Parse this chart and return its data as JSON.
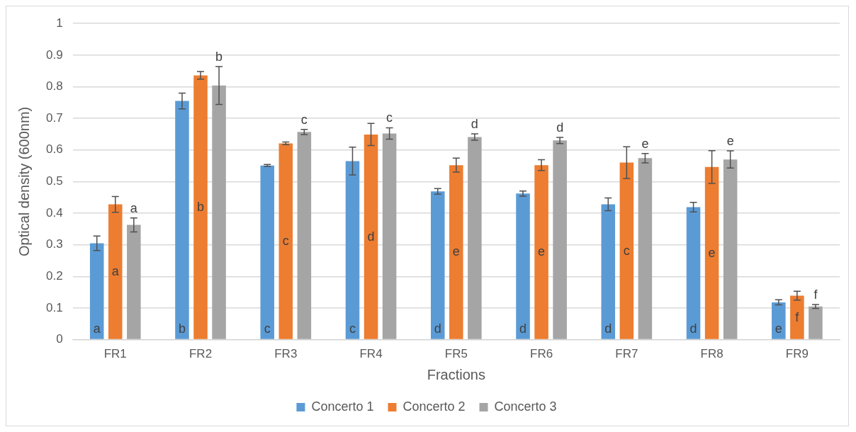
{
  "chart_data": {
    "type": "bar",
    "xlabel": "Fractions",
    "ylabel": "Optical density (600nm)",
    "categories": [
      "FR1",
      "FR2",
      "FR3",
      "FR4",
      "FR5",
      "FR6",
      "FR7",
      "FR8",
      "FR9"
    ],
    "series": [
      {
        "name": "Concerto 1",
        "color": "#5b9bd5",
        "values": [
          0.305,
          0.755,
          0.551,
          0.565,
          0.469,
          0.462,
          0.428,
          0.419,
          0.118
        ],
        "errors": [
          0.023,
          0.025,
          0.003,
          0.044,
          0.009,
          0.008,
          0.02,
          0.015,
          0.008
        ],
        "value_labels": [
          "a",
          "b",
          "c",
          "c",
          "d",
          "d",
          "d",
          "d",
          "e"
        ]
      },
      {
        "name": "Concerto 2",
        "color": "#ed7d31",
        "values": [
          0.428,
          0.836,
          0.621,
          0.649,
          0.552,
          0.552,
          0.56,
          0.546,
          0.139
        ],
        "errors": [
          0.025,
          0.012,
          0.004,
          0.035,
          0.022,
          0.017,
          0.05,
          0.052,
          0.014
        ],
        "value_labels": [
          "a",
          "b",
          "c",
          "d",
          "e",
          "e",
          "c",
          "e",
          "f"
        ]
      },
      {
        "name": "Concerto 3",
        "color": "#a5a5a5",
        "values": [
          0.363,
          0.804,
          0.657,
          0.652,
          0.641,
          0.63,
          0.574,
          0.57,
          0.105
        ],
        "errors": [
          0.022,
          0.06,
          0.008,
          0.018,
          0.01,
          0.01,
          0.015,
          0.027,
          0.006
        ],
        "value_labels": [
          "a",
          "b",
          "c",
          "c",
          "d",
          "d",
          "e",
          "e",
          "f"
        ]
      }
    ],
    "ylim": [
      0,
      1
    ],
    "yticks": [
      0,
      0.1,
      0.2,
      0.3,
      0.4,
      0.5,
      0.6,
      0.7,
      0.8,
      0.9,
      1
    ],
    "grid": "y",
    "legend": "bottom"
  }
}
